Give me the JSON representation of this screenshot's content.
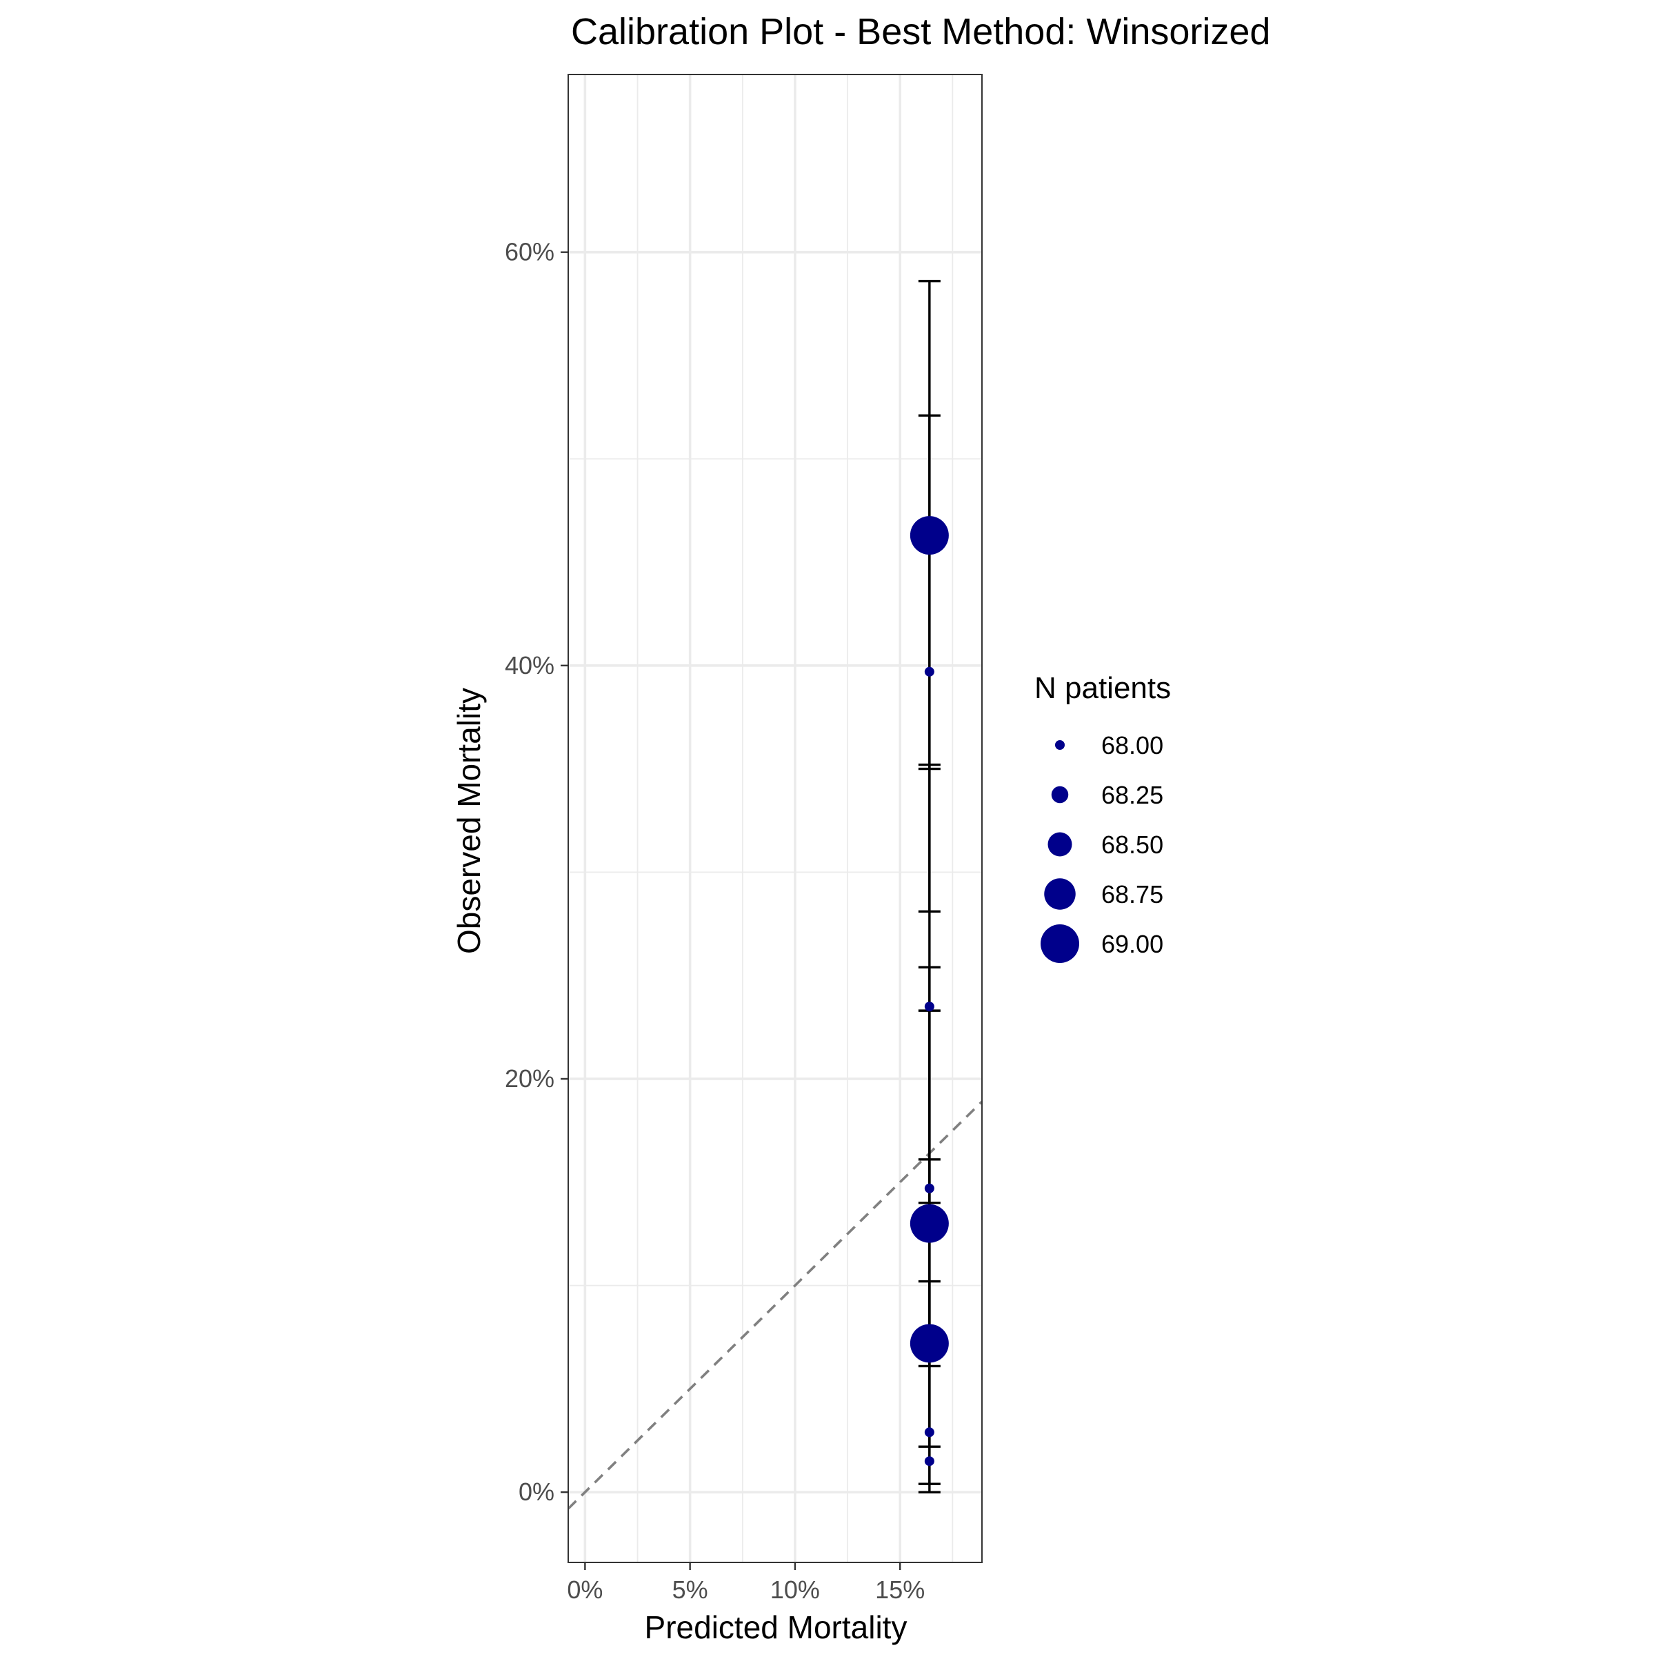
{
  "chart_data": {
    "type": "scatter",
    "title": "Calibration Plot - Best Method: Winsorized",
    "xlabel": "Predicted Mortality",
    "ylabel": "Observed Mortality",
    "xlim": [
      -0.008,
      0.189
    ],
    "ylim": [
      -0.034,
      0.686
    ],
    "x_ticks": [
      0,
      0.05,
      0.1,
      0.15
    ],
    "x_tick_labels": [
      "0%",
      "5%",
      "10%",
      "15%"
    ],
    "y_ticks": [
      0,
      0.2,
      0.4,
      0.6
    ],
    "y_tick_labels": [
      "0%",
      "20%",
      "40%",
      "60%"
    ],
    "grid": true,
    "reference_line": {
      "type": "identity",
      "style": "dashed",
      "color": "#808080"
    },
    "point_color": "#00008B",
    "errorbar_color": "#000000",
    "points": [
      {
        "x": 0.164,
        "y": 0.463,
        "ci_low": 0.35,
        "ci_high": 0.586,
        "n": 69
      },
      {
        "x": 0.164,
        "y": 0.397,
        "ci_low": 0.281,
        "ci_high": 0.521,
        "n": 68
      },
      {
        "x": 0.164,
        "y": 0.235,
        "ci_low": 0.14,
        "ci_high": 0.352,
        "n": 68
      },
      {
        "x": 0.164,
        "y": 0.147,
        "ci_low": 0.073,
        "ci_high": 0.254,
        "n": 68
      },
      {
        "x": 0.164,
        "y": 0.13,
        "ci_low": 0.061,
        "ci_high": 0.233,
        "n": 69
      },
      {
        "x": 0.164,
        "y": 0.072,
        "ci_low": 0.022,
        "ci_high": 0.161,
        "n": 69
      },
      {
        "x": 0.164,
        "y": 0.029,
        "ci_low": 0.004,
        "ci_high": 0.102,
        "n": 68
      },
      {
        "x": 0.164,
        "y": 0.015,
        "ci_low": 0.0,
        "ci_high": 0.079,
        "n": 68
      }
    ],
    "legend": {
      "title": "N patients",
      "position": "right",
      "entries": [
        "68.00",
        "68.25",
        "68.50",
        "68.75",
        "69.00"
      ],
      "values": [
        68.0,
        68.25,
        68.5,
        68.75,
        69.0
      ]
    }
  }
}
